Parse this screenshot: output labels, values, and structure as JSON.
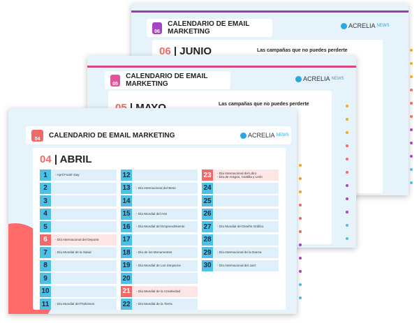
{
  "pages": [
    {
      "badge": "06",
      "title": "CALENDARIO DE EMAIL MARKETING",
      "month_number": "06",
      "month_name": "JUNIO",
      "subtitle": "Las campañas que no puedes perderte"
    },
    {
      "badge": "05",
      "title": "CALENDARIO DE EMAIL MARKETING",
      "month_number": "05",
      "month_name": "MAYO",
      "subtitle": "Las campañas que no puedes perderte"
    }
  ],
  "logo": {
    "brand": "ACRELIA",
    "suffix": "NEWS"
  },
  "front": {
    "badge": "04",
    "title": "CALENDARIO DE EMAIL MARKETING",
    "month_number": "04",
    "month_name": "ABRIL",
    "days": [
      {
        "day": 1,
        "events": [
          "- April Fools' Day"
        ]
      },
      {
        "day": 2,
        "events": []
      },
      {
        "day": 3,
        "events": []
      },
      {
        "day": 4,
        "events": []
      },
      {
        "day": 5,
        "events": []
      },
      {
        "day": 6,
        "events": [
          "- Día Internacional del Deporte"
        ],
        "highlight": true
      },
      {
        "day": 7,
        "events": [
          "- Día Mundial de la Salud"
        ]
      },
      {
        "day": 8,
        "events": []
      },
      {
        "day": 9,
        "events": []
      },
      {
        "day": 10,
        "events": []
      },
      {
        "day": 11,
        "events": [
          "- Día Mundial del Parkinson"
        ]
      },
      {
        "day": 12,
        "events": []
      },
      {
        "day": 13,
        "events": [
          "- Día Internacional del Beso"
        ]
      },
      {
        "day": 14,
        "events": []
      },
      {
        "day": 15,
        "events": [
          "- Día Mundial del Arte"
        ]
      },
      {
        "day": 16,
        "events": [
          "- Día Mundial del Emprendimiento"
        ]
      },
      {
        "day": 17,
        "events": []
      },
      {
        "day": 18,
        "events": [
          "- Día de los Monumentos"
        ]
      },
      {
        "day": 19,
        "events": [
          "- Día Mundial de Los Simpsons"
        ]
      },
      {
        "day": 20,
        "events": []
      },
      {
        "day": 21,
        "events": [
          "- Día Mundial de la Creatividad"
        ],
        "highlight": true
      },
      {
        "day": 22,
        "events": [
          "- Día Mundial de la Tierra"
        ]
      },
      {
        "day": 23,
        "events": [
          "- Día Internacional del Libro",
          "- Día de Aragon, Castilla y León"
        ],
        "highlight": true
      },
      {
        "day": 24,
        "events": []
      },
      {
        "day": 25,
        "events": []
      },
      {
        "day": 26,
        "events": []
      },
      {
        "day": 27,
        "events": [
          "- Día Mundial del Diseño Gráfico"
        ]
      },
      {
        "day": 28,
        "events": []
      },
      {
        "day": 29,
        "events": [
          "- Día Internacional de la Danza"
        ]
      },
      {
        "day": 30,
        "events": [
          "- Día Internacional del Jazz"
        ]
      }
    ]
  }
}
